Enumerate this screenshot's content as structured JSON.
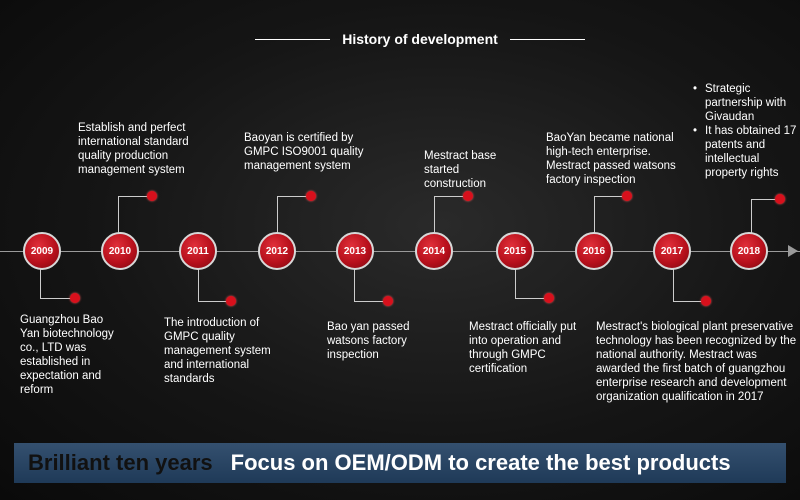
{
  "header": {
    "title": "History of development"
  },
  "milestones": [
    {
      "year": "2009",
      "text": "Guangzhou Bao Yan biotechnology co., LTD was established in expectation and reform"
    },
    {
      "year": "2010",
      "text": "Establish and perfect international standard quality production management system"
    },
    {
      "year": "2011",
      "text": "The introduction of GMPC quality management system and international standards"
    },
    {
      "year": "2012",
      "text": "Baoyan is certified by GMPC ISO9001 quality management system"
    },
    {
      "year": "2013",
      "text": "Bao yan passed watsons factory inspection"
    },
    {
      "year": "2014",
      "text": "Mestract base started construction"
    },
    {
      "year": "2015",
      "text": "Mestract officially put into operation and through GMPC certification"
    },
    {
      "year": "2016",
      "text": "BaoYan became national high-tech enterprise. Mestract  passed watsons factory inspection"
    },
    {
      "year": "2017",
      "text": "Mestract's biological plant preservative technology has been recognized by the national authority. Mestract was awarded the first batch of guangzhou enterprise research and development organization qualification in 2017"
    },
    {
      "year": "2018",
      "bullets": [
        "Strategic partnership with Givaudan",
        "It has obtained 17 patents and intellectual property rights"
      ]
    }
  ],
  "banner": {
    "left": "Brilliant ten years",
    "right": "Focus on OEM/ODM to create the best products"
  },
  "colors": {
    "node_red": "#c0111c",
    "banner_blue": "#2a4665",
    "background": "#151515"
  }
}
